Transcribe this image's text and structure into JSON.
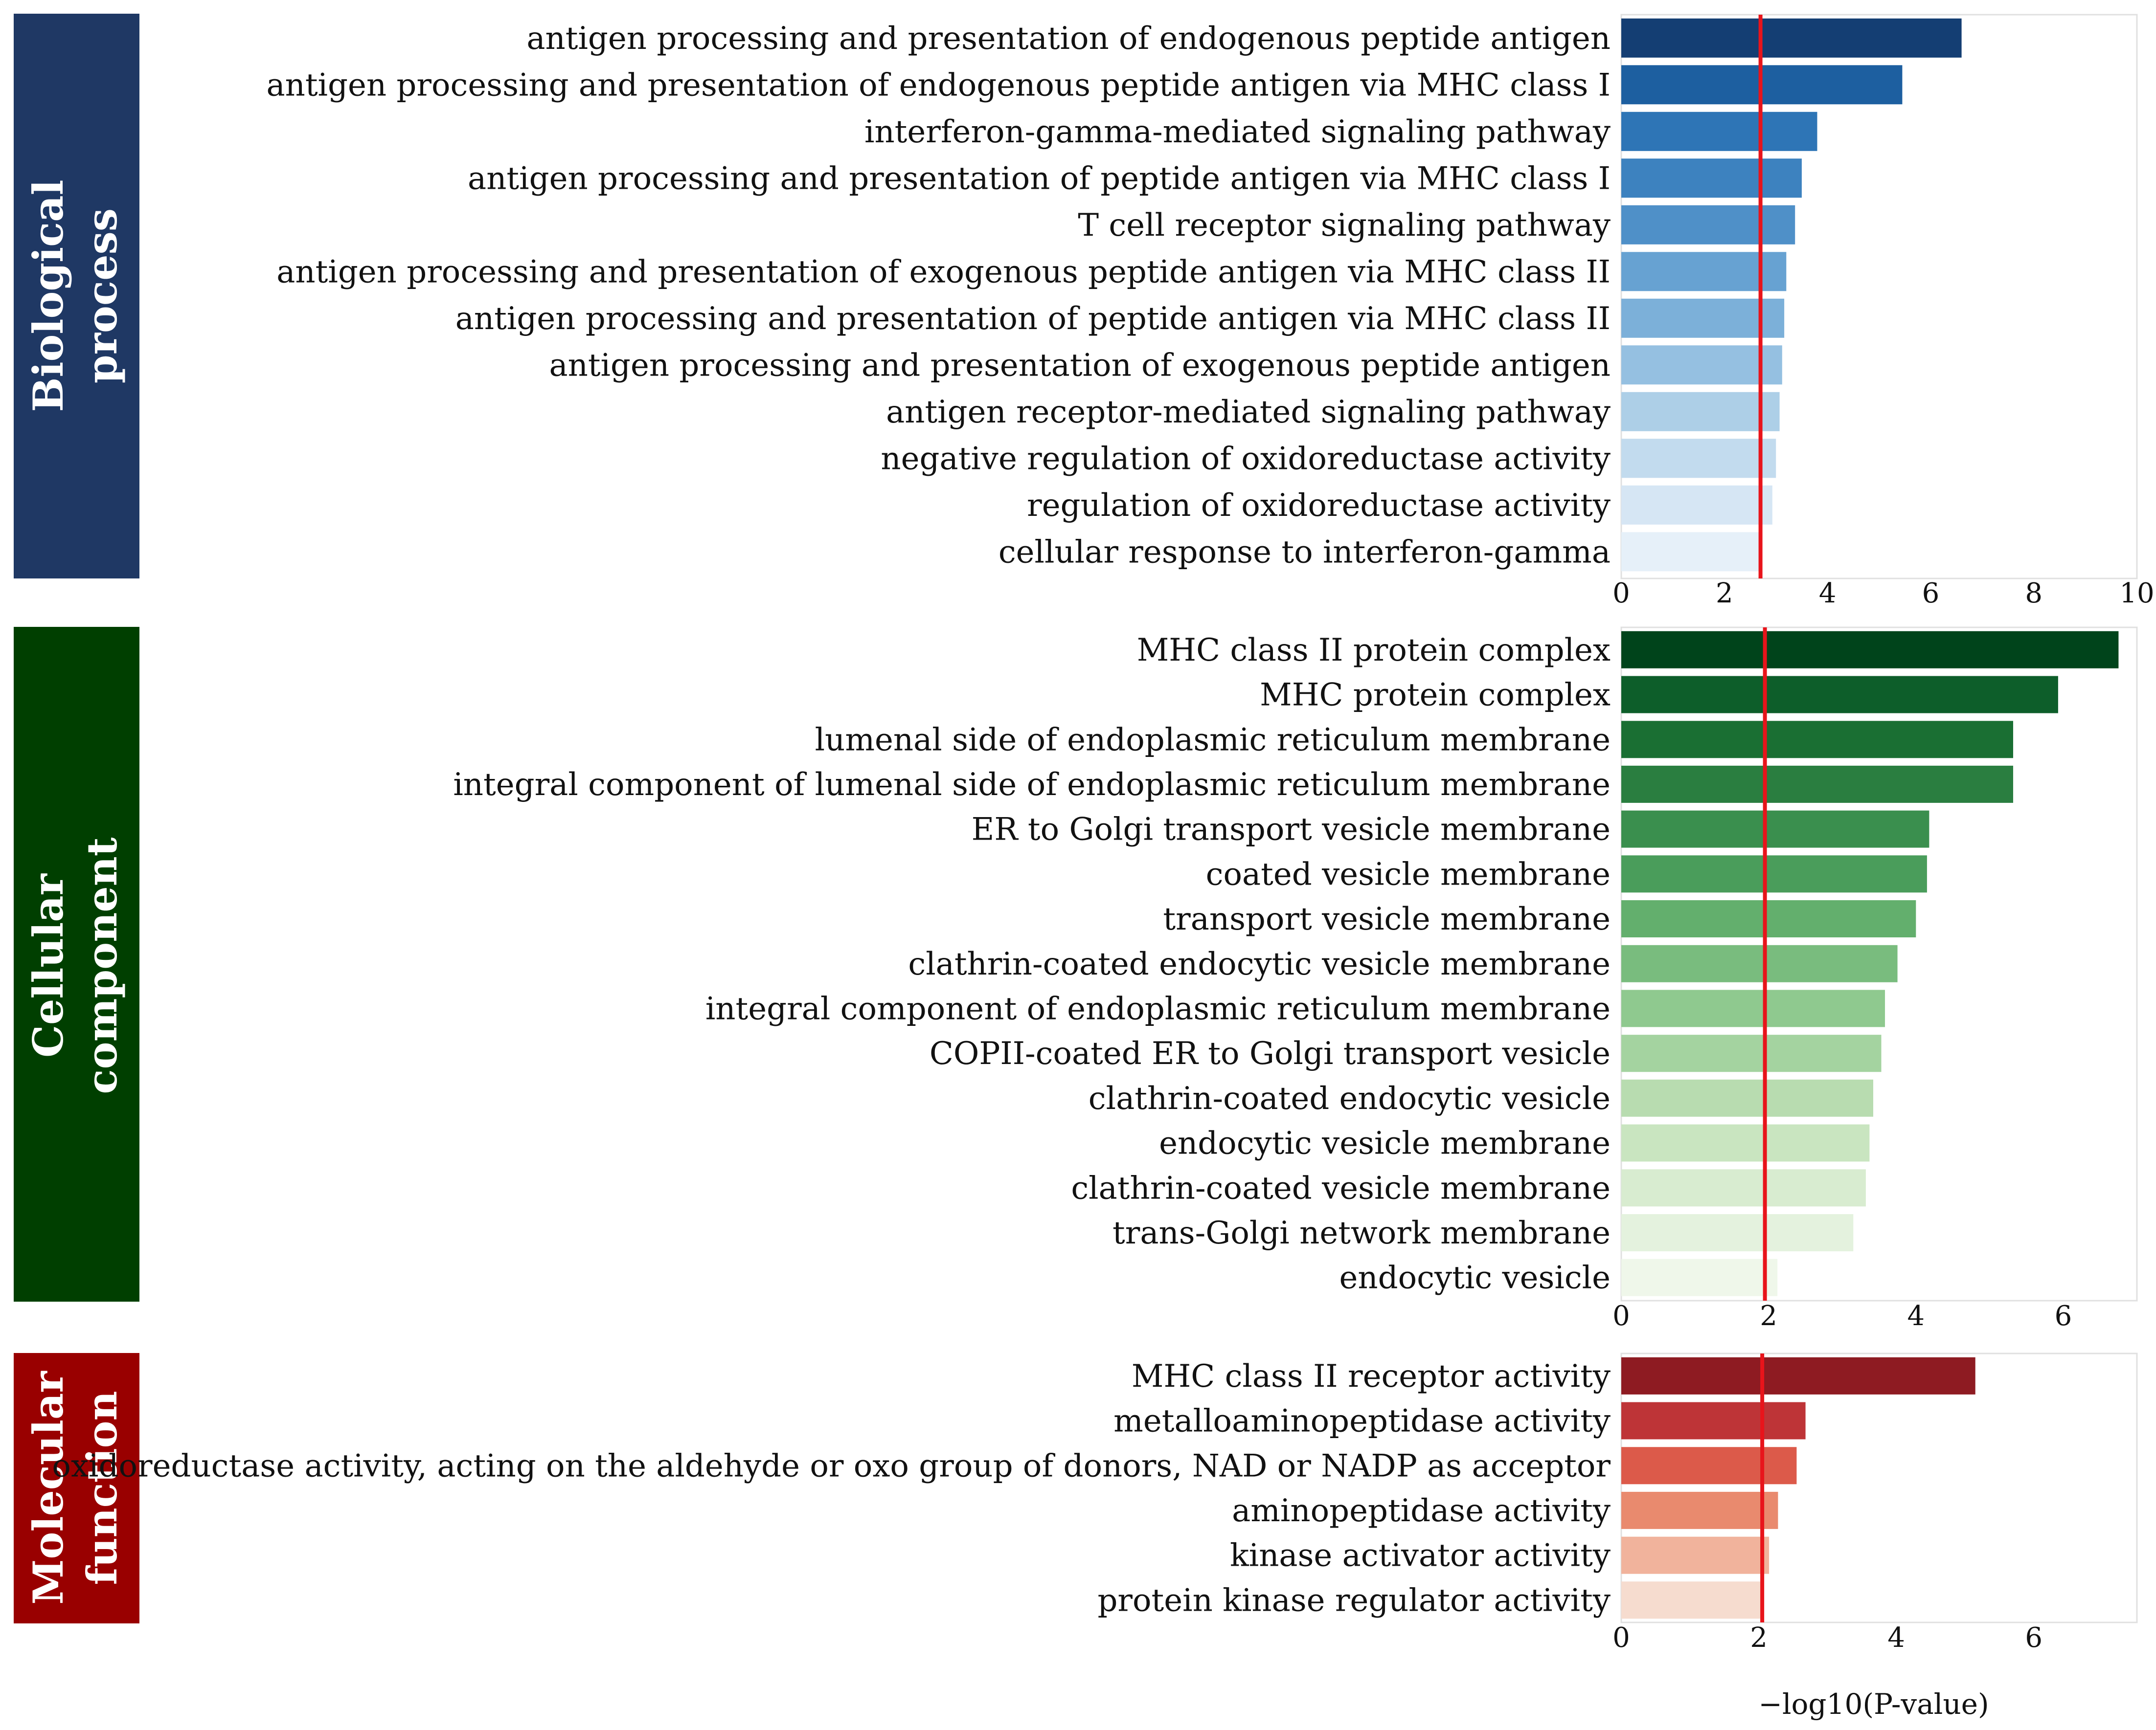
{
  "figure": {
    "xlabel": "−log10(P-value)",
    "threshold_color": "#e8141b"
  },
  "chart_data": [
    {
      "type": "bar",
      "orientation": "horizontal",
      "section_label": [
        "Biological",
        "process"
      ],
      "section_color": "#1f3864",
      "palette": [
        "#143e73",
        "#1d5fa0",
        "#2e75b6",
        "#3d82bf",
        "#4f90c8",
        "#67a2d2",
        "#7cb0d9",
        "#95c0e1",
        "#adcfe7",
        "#c2dbee",
        "#d6e6f4",
        "#e6f0f9"
      ],
      "categories": [
        "antigen processing and presentation of endogenous peptide antigen",
        "antigen processing and presentation of endogenous peptide antigen via MHC class I",
        "interferon-gamma-mediated signaling pathway",
        "antigen processing and presentation of peptide antigen via MHC class I",
        "T cell receptor signaling pathway",
        "antigen processing and presentation of exogenous peptide antigen via MHC class II",
        "antigen processing and presentation of peptide antigen via MHC class II",
        "antigen processing and presentation of exogenous peptide antigen",
        "antigen receptor-mediated signaling pathway",
        "negative regulation of oxidoreductase activity",
        "regulation of oxidoreductase activity",
        "cellular response to interferon-gamma"
      ],
      "values": [
        6.6,
        5.45,
        3.8,
        3.5,
        3.37,
        3.2,
        3.16,
        3.12,
        3.07,
        3.0,
        2.93,
        2.68
      ],
      "xlim": [
        0,
        10
      ],
      "xticks": [
        "0",
        "2",
        "4",
        "6",
        "8",
        "10"
      ],
      "threshold": 2.7
    },
    {
      "type": "bar",
      "orientation": "horizontal",
      "section_label": [
        "Cellular",
        "component"
      ],
      "section_color": "#003f00",
      "palette": [
        "#00441b",
        "#0d5e2a",
        "#1a6f33",
        "#2a7e40",
        "#3a8f4e",
        "#4a9d5b",
        "#63af6d",
        "#79bc7e",
        "#8fc98f",
        "#a4d3a0",
        "#b8dcb0",
        "#c9e5c0",
        "#d8ecd0",
        "#e4f2de",
        "#eff7ea"
      ],
      "categories": [
        "MHC class II protein complex",
        "MHC protein complex",
        "lumenal side of endoplasmic reticulum membrane",
        "integral component of lumenal side of endoplasmic reticulum membrane",
        "ER to Golgi transport vesicle membrane",
        "coated vesicle membrane",
        "transport vesicle membrane",
        "clathrin-coated endocytic vesicle membrane",
        "integral component of endoplasmic reticulum membrane",
        "COPII-coated ER to Golgi transport vesicle",
        "clathrin-coated endocytic vesicle",
        "endocytic vesicle membrane",
        "clathrin-coated vesicle membrane",
        "trans-Golgi network membrane",
        "endocytic vesicle"
      ],
      "values": [
        6.75,
        5.93,
        5.32,
        5.32,
        4.18,
        4.15,
        4.0,
        3.75,
        3.58,
        3.53,
        3.42,
        3.37,
        3.32,
        3.15,
        2.12
      ],
      "xlim": [
        0,
        7
      ],
      "xticks": [
        "0",
        "2",
        "4",
        "6"
      ],
      "threshold": 1.95
    },
    {
      "type": "bar",
      "orientation": "horizontal",
      "section_label": [
        "Molecular",
        "function"
      ],
      "section_color": "#990000",
      "palette": [
        "#8e1b22",
        "#be3437",
        "#dc5a4a",
        "#e98a6e",
        "#f1b39c",
        "#f6dccf"
      ],
      "categories": [
        "MHC class II receptor activity",
        "metalloaminopeptidase activity",
        "oxidoreductase activity, acting on the aldehyde or oxo group of donors, NAD or NADP as acceptor",
        "aminopeptidase activity",
        "kinase activator activity",
        "protein kinase regulator activity"
      ],
      "values": [
        5.15,
        2.68,
        2.55,
        2.28,
        2.15,
        2.05
      ],
      "xlim": [
        0,
        7.5
      ],
      "xticks": [
        "0",
        "2",
        "4",
        "6"
      ],
      "threshold": 2.05
    }
  ]
}
